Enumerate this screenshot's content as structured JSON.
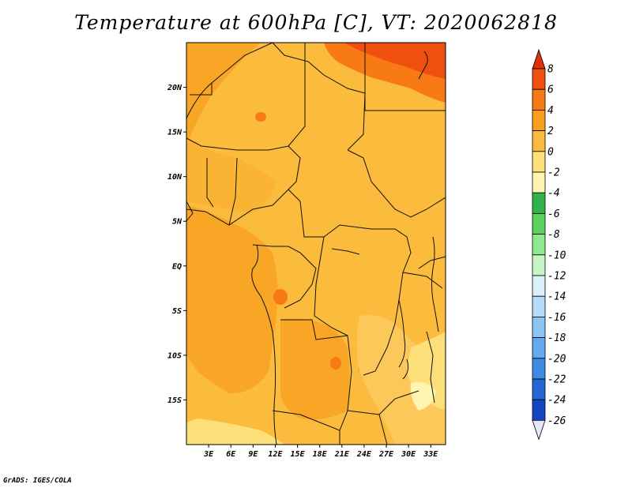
{
  "title": "Temperature at 600hPa [C], VT: 2020062818",
  "credit": "GrADS: IGES/COLA",
  "map": {
    "lon_range": [
      0,
      35
    ],
    "lat_range": [
      -20,
      25
    ],
    "lat_ticks": [
      {
        "value": 20,
        "label": "20N"
      },
      {
        "value": 15,
        "label": "15N"
      },
      {
        "value": 10,
        "label": "10N"
      },
      {
        "value": 5,
        "label": "5N"
      },
      {
        "value": 0,
        "label": "EQ"
      },
      {
        "value": -5,
        "label": "5S"
      },
      {
        "value": -10,
        "label": "10S"
      },
      {
        "value": -15,
        "label": "15S"
      }
    ],
    "lon_ticks": [
      {
        "value": 3,
        "label": "3E"
      },
      {
        "value": 6,
        "label": "6E"
      },
      {
        "value": 9,
        "label": "9E"
      },
      {
        "value": 12,
        "label": "12E"
      },
      {
        "value": 15,
        "label": "15E"
      },
      {
        "value": 18,
        "label": "18E"
      },
      {
        "value": 21,
        "label": "21E"
      },
      {
        "value": 24,
        "label": "24E"
      },
      {
        "value": 27,
        "label": "27E"
      },
      {
        "value": 30,
        "label": "30E"
      },
      {
        "value": 33,
        "label": "33E"
      }
    ]
  },
  "colorbar": {
    "levels": [
      "8",
      "6",
      "4",
      "2",
      "0",
      "-2",
      "-4",
      "-6",
      "-8",
      "-10",
      "-12",
      "-14",
      "-16",
      "-18",
      "-20",
      "-22",
      "-24",
      "-26"
    ],
    "colors": [
      "#e0320a",
      "#f0500f",
      "#f77a14",
      "#fa9c1e",
      "#fbbb3c",
      "#fde07a",
      "#fff5b0",
      "#2fb34a",
      "#5cd35e",
      "#90e890",
      "#c8f5c8",
      "#dcf0fa",
      "#b4dcf8",
      "#8cc4f4",
      "#64a8ee",
      "#3c8ce6",
      "#2468d8",
      "#1446c4",
      "#0a2896",
      "#000a64",
      "#e6e6fa"
    ],
    "top_triangle_color": "#e0320a",
    "bottom_triangle_color": "#e6e6fa"
  }
}
